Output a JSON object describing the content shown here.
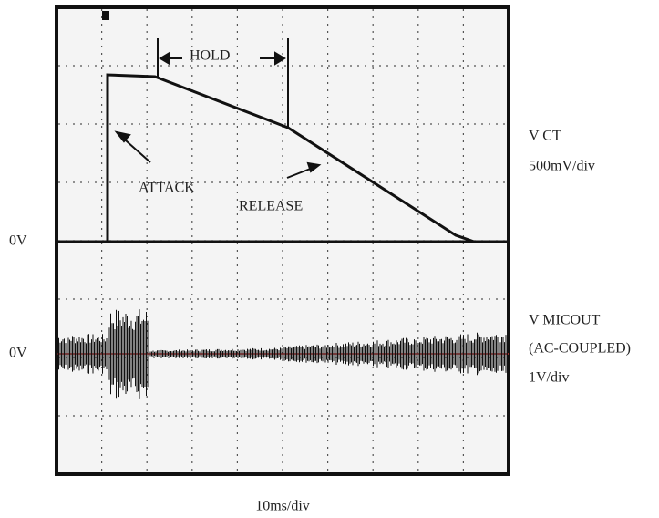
{
  "annotations": {
    "hold": "HOLD",
    "attack": "ATTACK",
    "release": "RELEASE"
  },
  "channel_1": {
    "name": "V CT",
    "scale": "500mV/div",
    "zero": "0V"
  },
  "channel_2": {
    "name": "V MICOUT",
    "coupling": "(AC-COUPLED)",
    "scale": "1V/div",
    "zero": "0V"
  },
  "timebase": "10ms/div"
}
